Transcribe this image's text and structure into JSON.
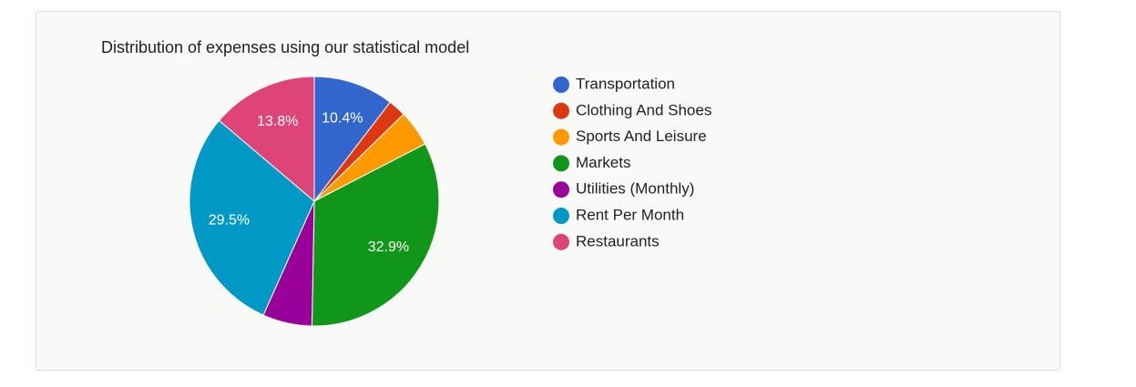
{
  "chart_data": {
    "type": "pie",
    "title": "Distribution of expenses using our statistical model",
    "categories": [
      "Transportation",
      "Clothing And Shoes",
      "Sports And Leisure",
      "Markets",
      "Utilities (Monthly)",
      "Rent Per Month",
      "Restaurants"
    ],
    "values": [
      10.4,
      2.3,
      4.7,
      32.9,
      6.4,
      29.5,
      13.8
    ],
    "value_labels": [
      "10.4%",
      null,
      null,
      "32.9%",
      null,
      "29.5%",
      "13.8%"
    ],
    "colors": [
      "#3366cc",
      "#dc3912",
      "#ff9900",
      "#109618",
      "#990099",
      "#0099c6",
      "#dd4477"
    ],
    "legend": "right"
  }
}
